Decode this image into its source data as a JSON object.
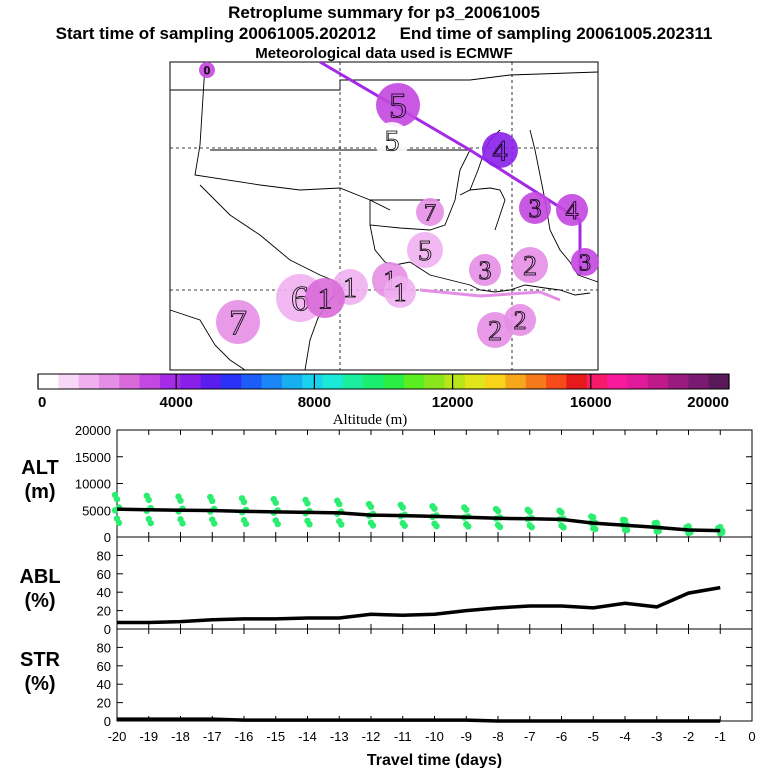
{
  "header": {
    "title": "Retroplume summary for p3_20061005",
    "start_label": "Start time of sampling 20061005.202012",
    "end_label": "End time of sampling 20061005.202311",
    "met_label": "Meteorological data used is ECMWF"
  },
  "colorbar": {
    "label": "Altitude (m)",
    "ticks": [
      "0",
      "4000",
      "8000",
      "12000",
      "16000",
      "20000"
    ],
    "colors": [
      "#ffffff",
      "#f7d9f7",
      "#f0b0f0",
      "#e58ee5",
      "#d96ad9",
      "#c347e0",
      "#a52be6",
      "#8a1fea",
      "#5a1df0",
      "#2a30f5",
      "#1c5cf7",
      "#1a86f7",
      "#18aff2",
      "#1ad2ee",
      "#1ae8d8",
      "#1aee9c",
      "#1aee70",
      "#2bee44",
      "#5aee20",
      "#8ae61a",
      "#b8e61a",
      "#e0e61a",
      "#f7d41a",
      "#f7a81a",
      "#f77a1a",
      "#f74a1a",
      "#e61a1a",
      "#f71a6a",
      "#f71a9a",
      "#e01a9a",
      "#c01a8a",
      "#9a1a80",
      "#7a1a70",
      "#5a1a5a"
    ]
  },
  "map": {
    "markers": [
      {
        "label": "0",
        "color": "#c347e0"
      },
      {
        "label": "5",
        "color": "#c347e0"
      },
      {
        "label": "5",
        "color": "#ffffff"
      },
      {
        "label": "4",
        "color": "#8a1fea"
      },
      {
        "label": "7",
        "color": "#e58ee5"
      },
      {
        "label": "3",
        "color": "#c347e0"
      },
      {
        "label": "4",
        "color": "#c347e0"
      },
      {
        "label": "5",
        "color": "#f0b0f0"
      },
      {
        "label": "3",
        "color": "#e58ee5"
      },
      {
        "label": "2",
        "color": "#e58ee5"
      },
      {
        "label": "3",
        "color": "#c347e0"
      },
      {
        "label": "1",
        "color": "#e58ee5"
      },
      {
        "label": "1",
        "color": "#f0b0f0"
      },
      {
        "label": "6",
        "color": "#f0b0f0"
      },
      {
        "label": "1",
        "color": "#d96ad9"
      },
      {
        "label": "1",
        "color": "#f0b0f0"
      },
      {
        "label": "7",
        "color": "#e58ee5"
      },
      {
        "label": "2",
        "color": "#e58ee5"
      },
      {
        "label": "2",
        "color": "#e58ee5"
      }
    ]
  },
  "chart_data": [
    {
      "type": "scatter",
      "title": "ALT",
      "ylabel": "ALT (m)",
      "ylim": [
        0,
        20000
      ],
      "yticks": [
        "20000",
        "15000",
        "10000",
        "5000",
        "0"
      ],
      "xlim": [
        -20,
        0
      ],
      "series": [
        {
          "name": "mean altitude",
          "x": [
            -20,
            -19,
            -18,
            -17,
            -16,
            -15,
            -14,
            -13,
            -12,
            -11,
            -10,
            -9,
            -8,
            -7,
            -6,
            -5,
            -4,
            -3,
            -2,
            -1
          ],
          "values": [
            5200,
            5100,
            5000,
            4950,
            4800,
            4700,
            4600,
            4500,
            4100,
            4000,
            3850,
            3700,
            3500,
            3400,
            3300,
            2600,
            2200,
            1800,
            1300,
            1200
          ]
        }
      ]
    },
    {
      "type": "line",
      "title": "ABL",
      "ylabel": "ABL (%)",
      "ylim": [
        0,
        100
      ],
      "yticks": [
        "80",
        "60",
        "40",
        "20",
        "0"
      ],
      "xlim": [
        -20,
        0
      ],
      "series": [
        {
          "name": "ABL fraction",
          "x": [
            -20,
            -19,
            -18,
            -17,
            -16,
            -15,
            -14,
            -13,
            -12,
            -11,
            -10,
            -9,
            -8,
            -7,
            -6,
            -5,
            -4,
            -3,
            -2,
            -1
          ],
          "values": [
            7,
            7,
            8,
            10,
            11,
            11,
            12,
            12,
            16,
            15,
            16,
            20,
            23,
            25,
            25,
            23,
            28,
            24,
            39,
            45
          ]
        }
      ]
    },
    {
      "type": "line",
      "title": "STR",
      "ylabel": "STR (%)",
      "ylim": [
        0,
        100
      ],
      "yticks": [
        "80",
        "60",
        "40",
        "20",
        "0"
      ],
      "xlabel": "Travel time (days)",
      "xticks": [
        "-20",
        "-19",
        "-18",
        "-17",
        "-16",
        "-15",
        "-14",
        "-13",
        "-12",
        "-11",
        "-10",
        "-9",
        "-8",
        "-7",
        "-6",
        "-5",
        "-4",
        "-3",
        "-2",
        "-1",
        "0"
      ],
      "xlim": [
        -20,
        0
      ],
      "series": [
        {
          "name": "stratosphere fraction",
          "x": [
            -20,
            -19,
            -18,
            -17,
            -16,
            -15,
            -14,
            -13,
            -12,
            -11,
            -10,
            -9,
            -8,
            -7,
            -6,
            -5,
            -4,
            -3,
            -2,
            -1
          ],
          "values": [
            2,
            2,
            2,
            2,
            1,
            1,
            1,
            1,
            1,
            1,
            1,
            1,
            0,
            0,
            0,
            0,
            0,
            0,
            0,
            0
          ]
        }
      ]
    }
  ],
  "panels": {
    "alt_label_1": "ALT",
    "alt_label_2": "(m)",
    "abl_label_1": "ABL",
    "abl_label_2": "(%)",
    "str_label_1": "STR",
    "str_label_2": "(%)"
  }
}
